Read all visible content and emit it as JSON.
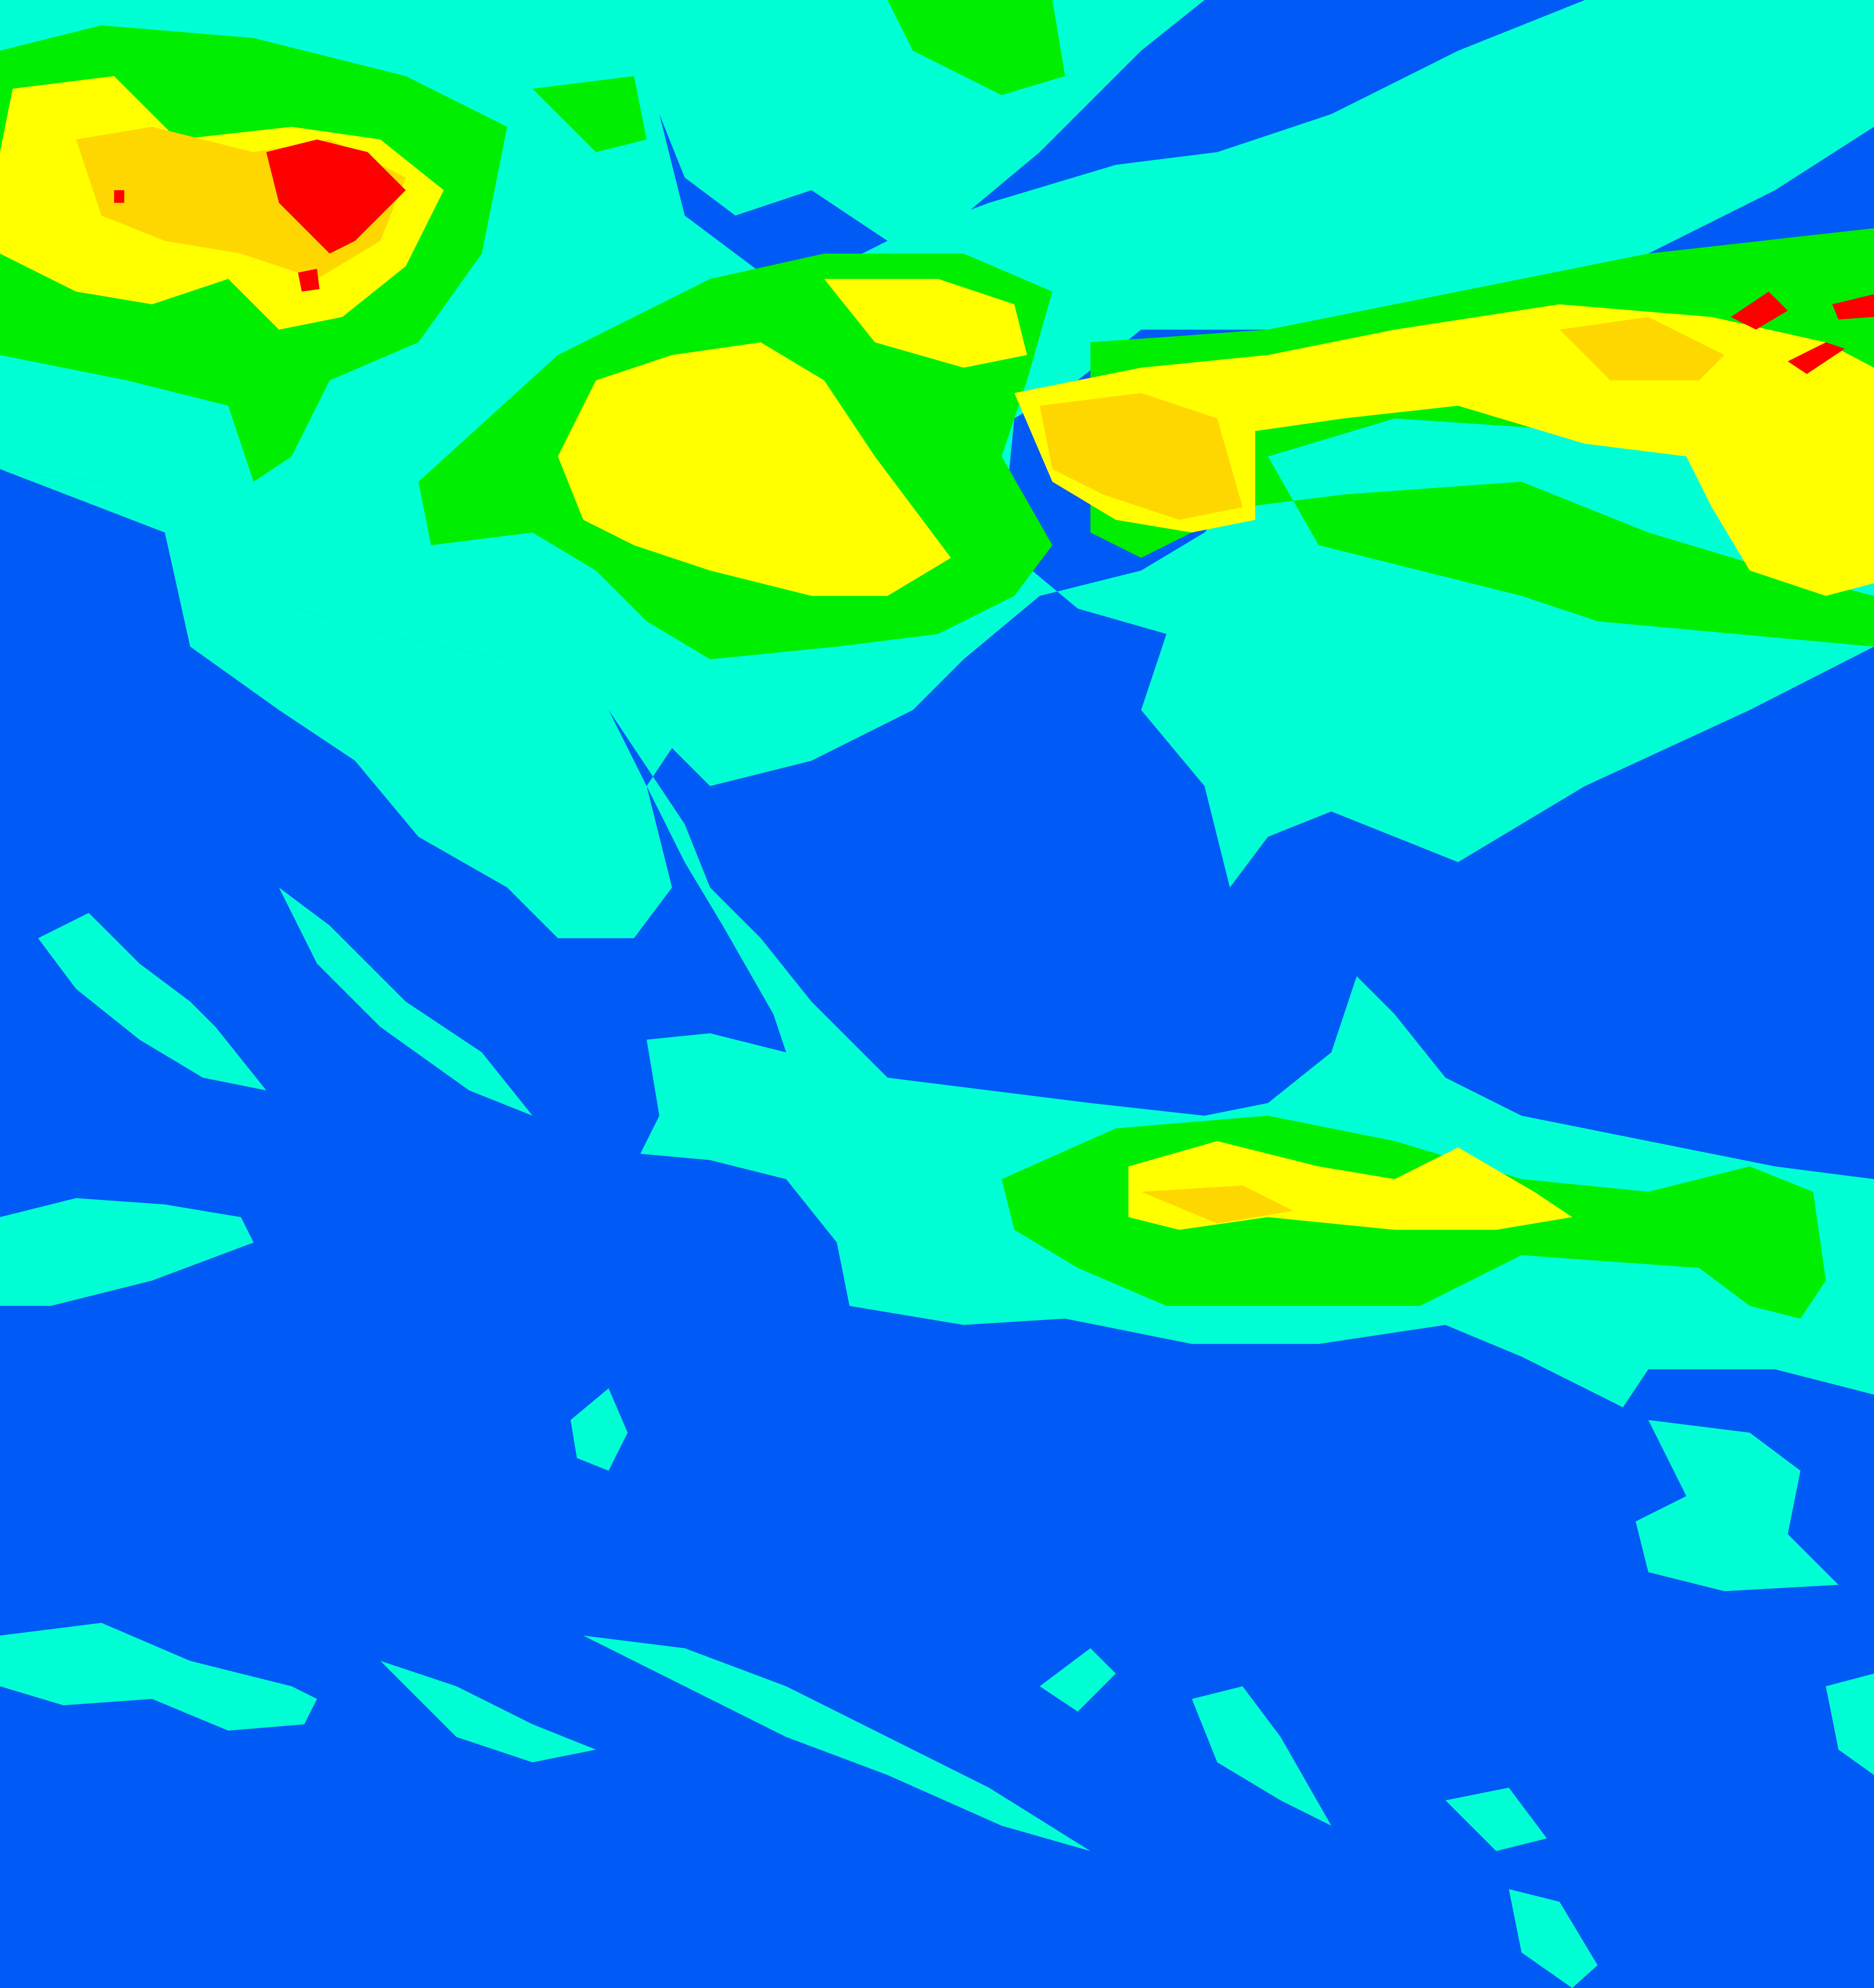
{
  "map": {
    "type": "classified-raster",
    "colors": {
      "class_1": "#005af5",
      "class_2": "#00ffd5",
      "class_3": "#00ee00",
      "class_4": "#ffff00",
      "class_5": "#ffd700",
      "class_6": "#ff0000"
    }
  }
}
